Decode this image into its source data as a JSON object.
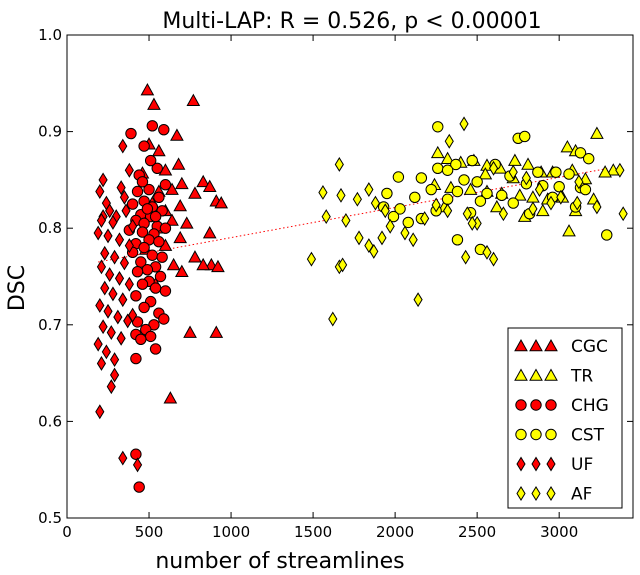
{
  "chart_data": {
    "type": "scatter",
    "title": "Multi-LAP: R = 0.526, p < 0.00001",
    "xlabel": "number of streamlines",
    "ylabel": "DSC",
    "xlim": [
      0,
      3450
    ],
    "ylim": [
      0.5,
      1.0
    ],
    "xticks": [
      0,
      500,
      1000,
      1500,
      2000,
      2500,
      3000
    ],
    "xtick_labels": [
      "0",
      "500",
      "1000",
      "1500",
      "2000",
      "2500",
      "3000"
    ],
    "yticks": [
      0.5,
      0.6,
      0.7,
      0.8,
      0.9,
      1.0
    ],
    "ytick_labels": [
      "0.5",
      "0.6",
      "0.7",
      "0.8",
      "0.9",
      "1.0"
    ],
    "grid": false,
    "legend_position": "bottom-right",
    "fit_line": {
      "x": [
        190,
        3300
      ],
      "y": [
        0.765,
        0.862
      ],
      "color": "#ff0000",
      "style": "dotted"
    },
    "series": [
      {
        "name": "CGC",
        "marker": "triangle",
        "color": "#ff0000",
        "points": [
          [
            490,
            0.943
          ],
          [
            530,
            0.928
          ],
          [
            770,
            0.932
          ],
          [
            670,
            0.896
          ],
          [
            500,
            0.887
          ],
          [
            560,
            0.88
          ],
          [
            680,
            0.866
          ],
          [
            600,
            0.86
          ],
          [
            460,
            0.857
          ],
          [
            830,
            0.848
          ],
          [
            700,
            0.846
          ],
          [
            870,
            0.843
          ],
          [
            640,
            0.84
          ],
          [
            560,
            0.838
          ],
          [
            780,
            0.836
          ],
          [
            910,
            0.828
          ],
          [
            520,
            0.826
          ],
          [
            690,
            0.823
          ],
          [
            600,
            0.818
          ],
          [
            470,
            0.812
          ],
          [
            640,
            0.808
          ],
          [
            730,
            0.805
          ],
          [
            550,
            0.8
          ],
          [
            870,
            0.795
          ],
          [
            690,
            0.79
          ],
          [
            600,
            0.782
          ],
          [
            480,
            0.778
          ],
          [
            780,
            0.77
          ],
          [
            650,
            0.762
          ],
          [
            880,
            0.762
          ],
          [
            920,
            0.76
          ],
          [
            700,
            0.755
          ],
          [
            540,
            0.742
          ],
          [
            750,
            0.692
          ],
          [
            910,
            0.692
          ],
          [
            630,
            0.624
          ],
          [
            830,
            0.762
          ],
          [
            940,
            0.826
          ]
        ]
      },
      {
        "name": "TR",
        "marker": "triangle",
        "color": "#ffff00",
        "points": [
          [
            2260,
            0.878
          ],
          [
            2320,
            0.872
          ],
          [
            2400,
            0.868
          ],
          [
            2480,
            0.87
          ],
          [
            2560,
            0.865
          ],
          [
            2640,
            0.862
          ],
          [
            2730,
            0.87
          ],
          [
            2810,
            0.866
          ],
          [
            2890,
            0.858
          ],
          [
            2960,
            0.858
          ],
          [
            3050,
            0.884
          ],
          [
            3100,
            0.88
          ],
          [
            3230,
            0.898
          ],
          [
            3080,
            0.86
          ],
          [
            2240,
            0.845
          ],
          [
            2340,
            0.842
          ],
          [
            2460,
            0.84
          ],
          [
            2560,
            0.838
          ],
          [
            2650,
            0.836
          ],
          [
            2760,
            0.834
          ],
          [
            2840,
            0.832
          ],
          [
            2930,
            0.83
          ],
          [
            3020,
            0.832
          ],
          [
            3210,
            0.83
          ],
          [
            2300,
            0.822
          ],
          [
            2620,
            0.822
          ],
          [
            2900,
            0.818
          ],
          [
            3100,
            0.818
          ],
          [
            2790,
            0.812
          ],
          [
            3060,
            0.797
          ],
          [
            3330,
            0.86
          ],
          [
            3280,
            0.858
          ],
          [
            2550,
            0.856
          ],
          [
            2720,
            0.852
          ],
          [
            3160,
            0.851
          ]
        ]
      },
      {
        "name": "CHG",
        "marker": "circle",
        "color": "#ff0000",
        "points": [
          [
            520,
            0.906
          ],
          [
            390,
            0.898
          ],
          [
            590,
            0.902
          ],
          [
            470,
            0.885
          ],
          [
            550,
            0.862
          ],
          [
            510,
            0.87
          ],
          [
            440,
            0.855
          ],
          [
            600,
            0.845
          ],
          [
            500,
            0.84
          ],
          [
            430,
            0.838
          ],
          [
            560,
            0.832
          ],
          [
            470,
            0.828
          ],
          [
            400,
            0.825
          ],
          [
            520,
            0.822
          ],
          [
            580,
            0.818
          ],
          [
            450,
            0.814
          ],
          [
            510,
            0.812
          ],
          [
            420,
            0.808
          ],
          [
            470,
            0.805
          ],
          [
            550,
            0.802
          ],
          [
            600,
            0.8
          ],
          [
            380,
            0.798
          ],
          [
            460,
            0.796
          ],
          [
            530,
            0.794
          ],
          [
            500,
            0.788
          ],
          [
            560,
            0.786
          ],
          [
            420,
            0.784
          ],
          [
            470,
            0.78
          ],
          [
            400,
            0.775
          ],
          [
            520,
            0.772
          ],
          [
            580,
            0.77
          ],
          [
            450,
            0.765
          ],
          [
            540,
            0.76
          ],
          [
            490,
            0.757
          ],
          [
            430,
            0.755
          ],
          [
            570,
            0.75
          ],
          [
            500,
            0.745
          ],
          [
            460,
            0.742
          ],
          [
            540,
            0.738
          ],
          [
            600,
            0.735
          ],
          [
            420,
            0.73
          ],
          [
            510,
            0.724
          ],
          [
            470,
            0.718
          ],
          [
            560,
            0.712
          ],
          [
            590,
            0.706
          ],
          [
            430,
            0.703
          ],
          [
            530,
            0.7
          ],
          [
            480,
            0.695
          ],
          [
            420,
            0.69
          ],
          [
            510,
            0.688
          ],
          [
            450,
            0.685
          ],
          [
            540,
            0.675
          ],
          [
            420,
            0.665
          ],
          [
            420,
            0.566
          ],
          [
            440,
            0.532
          ],
          [
            490,
            0.82
          ],
          [
            460,
            0.848
          ],
          [
            540,
            0.812
          ]
        ]
      },
      {
        "name": "CST",
        "marker": "circle",
        "color": "#ffff00",
        "points": [
          [
            2260,
            0.905
          ],
          [
            2750,
            0.893
          ],
          [
            2790,
            0.895
          ],
          [
            3130,
            0.878
          ],
          [
            3180,
            0.872
          ],
          [
            2470,
            0.87
          ],
          [
            2370,
            0.866
          ],
          [
            2610,
            0.866
          ],
          [
            2260,
            0.862
          ],
          [
            2320,
            0.86
          ],
          [
            2870,
            0.858
          ],
          [
            2980,
            0.858
          ],
          [
            3060,
            0.856
          ],
          [
            2700,
            0.854
          ],
          [
            2020,
            0.853
          ],
          [
            2160,
            0.852
          ],
          [
            2420,
            0.85
          ],
          [
            2500,
            0.848
          ],
          [
            2800,
            0.846
          ],
          [
            2900,
            0.844
          ],
          [
            3000,
            0.843
          ],
          [
            3130,
            0.842
          ],
          [
            2220,
            0.84
          ],
          [
            2380,
            0.838
          ],
          [
            2560,
            0.836
          ],
          [
            2650,
            0.834
          ],
          [
            2960,
            0.832
          ],
          [
            1950,
            0.836
          ],
          [
            2120,
            0.832
          ],
          [
            2320,
            0.83
          ],
          [
            2520,
            0.828
          ],
          [
            2720,
            0.826
          ],
          [
            1930,
            0.822
          ],
          [
            2030,
            0.82
          ],
          [
            2250,
            0.818
          ],
          [
            2460,
            0.816
          ],
          [
            2820,
            0.815
          ],
          [
            3100,
            0.822
          ],
          [
            1990,
            0.812
          ],
          [
            2160,
            0.81
          ],
          [
            2080,
            0.806
          ],
          [
            2520,
            0.778
          ],
          [
            2380,
            0.788
          ],
          [
            3290,
            0.793
          ],
          [
            3160,
            0.84
          ]
        ]
      },
      {
        "name": "UF",
        "marker": "diamond",
        "color": "#ff0000",
        "points": [
          [
            340,
            0.885
          ],
          [
            220,
            0.85
          ],
          [
            380,
            0.86
          ],
          [
            200,
            0.838
          ],
          [
            330,
            0.842
          ],
          [
            240,
            0.826
          ],
          [
            300,
            0.812
          ],
          [
            360,
            0.818
          ],
          [
            220,
            0.812
          ],
          [
            280,
            0.806
          ],
          [
            190,
            0.795
          ],
          [
            250,
            0.792
          ],
          [
            320,
            0.788
          ],
          [
            380,
            0.782
          ],
          [
            230,
            0.774
          ],
          [
            290,
            0.77
          ],
          [
            350,
            0.764
          ],
          [
            210,
            0.76
          ],
          [
            260,
            0.752
          ],
          [
            320,
            0.748
          ],
          [
            380,
            0.742
          ],
          [
            230,
            0.738
          ],
          [
            280,
            0.732
          ],
          [
            340,
            0.726
          ],
          [
            200,
            0.72
          ],
          [
            250,
            0.714
          ],
          [
            310,
            0.708
          ],
          [
            370,
            0.704
          ],
          [
            220,
            0.698
          ],
          [
            270,
            0.692
          ],
          [
            330,
            0.686
          ],
          [
            190,
            0.68
          ],
          [
            240,
            0.672
          ],
          [
            290,
            0.664
          ],
          [
            210,
            0.66
          ],
          [
            270,
            0.636
          ],
          [
            290,
            0.648
          ],
          [
            200,
            0.61
          ],
          [
            340,
            0.562
          ],
          [
            430,
            0.555
          ],
          [
            350,
            0.832
          ],
          [
            260,
            0.818
          ],
          [
            400,
            0.802
          ],
          [
            210,
            0.808
          ],
          [
            400,
            0.71
          ]
        ]
      },
      {
        "name": "AF",
        "marker": "diamond",
        "color": "#ffff00",
        "points": [
          [
            1660,
            0.866
          ],
          [
            2420,
            0.908
          ],
          [
            2330,
            0.89
          ],
          [
            1560,
            0.837
          ],
          [
            1670,
            0.834
          ],
          [
            1580,
            0.812
          ],
          [
            1770,
            0.83
          ],
          [
            1840,
            0.84
          ],
          [
            1880,
            0.826
          ],
          [
            1940,
            0.818
          ],
          [
            1700,
            0.808
          ],
          [
            1780,
            0.79
          ],
          [
            1840,
            0.782
          ],
          [
            1870,
            0.776
          ],
          [
            1920,
            0.79
          ],
          [
            1970,
            0.802
          ],
          [
            2060,
            0.795
          ],
          [
            2110,
            0.788
          ],
          [
            2180,
            0.81
          ],
          [
            2250,
            0.824
          ],
          [
            2320,
            0.818
          ],
          [
            2440,
            0.815
          ],
          [
            2500,
            0.805
          ],
          [
            2560,
            0.775
          ],
          [
            2600,
            0.768
          ],
          [
            2430,
            0.77
          ],
          [
            1660,
            0.76
          ],
          [
            1680,
            0.762
          ],
          [
            1490,
            0.768
          ],
          [
            1620,
            0.706
          ],
          [
            2140,
            0.726
          ],
          [
            2600,
            0.862
          ],
          [
            2720,
            0.858
          ],
          [
            2800,
            0.852
          ],
          [
            2880,
            0.84
          ],
          [
            3010,
            0.832
          ],
          [
            3110,
            0.826
          ],
          [
            3230,
            0.822
          ],
          [
            3390,
            0.815
          ],
          [
            3370,
            0.86
          ],
          [
            3120,
            0.848
          ],
          [
            2950,
            0.826
          ],
          [
            2840,
            0.82
          ],
          [
            2660,
            0.815
          ],
          [
            2470,
            0.805
          ]
        ]
      }
    ]
  }
}
